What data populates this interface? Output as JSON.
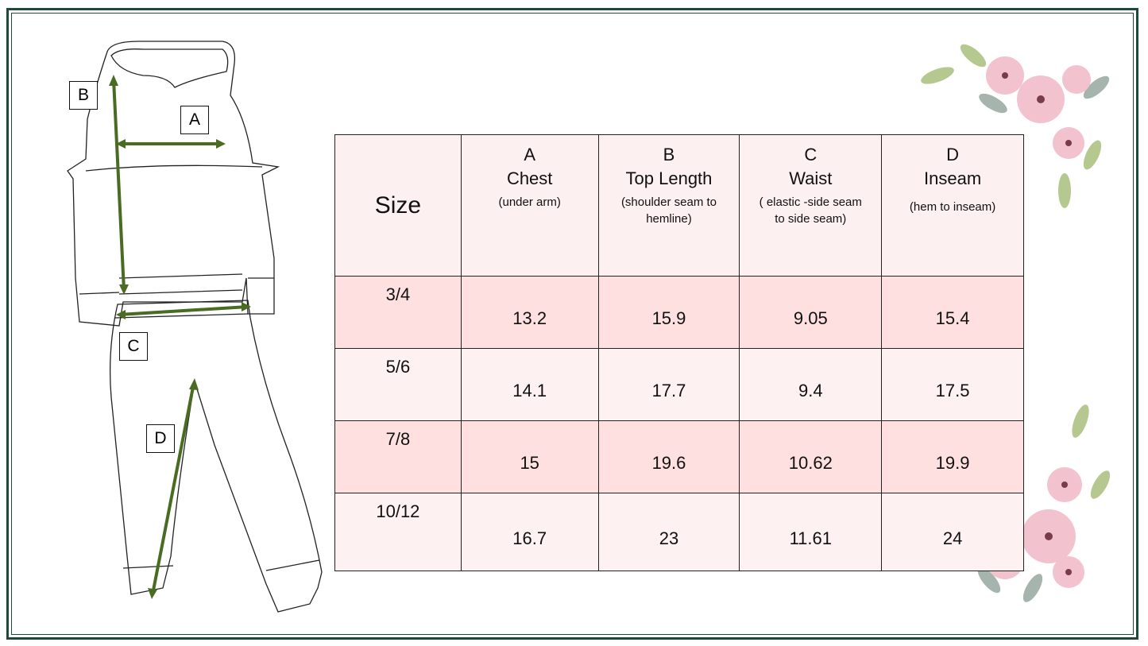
{
  "table": {
    "size_header": "Size",
    "columns": [
      {
        "letter": "A",
        "name": "Chest",
        "note": "(under arm)"
      },
      {
        "letter": "B",
        "name": "Top Length",
        "note": "(shoulder seam to hemline)"
      },
      {
        "letter": "C",
        "name": "Waist",
        "note": "( elastic -side seam to side seam)"
      },
      {
        "letter": "D",
        "name": "Inseam",
        "note": "(hem to inseam)"
      }
    ],
    "rows": [
      {
        "size": "3/4",
        "values": [
          "13.2",
          "15.9",
          "9.05",
          "15.4"
        ]
      },
      {
        "size": "5/6",
        "values": [
          "14.1",
          "17.7",
          "9.4",
          "17.5"
        ]
      },
      {
        "size": "7/8",
        "values": [
          "15",
          "19.6",
          "10.62",
          "19.9"
        ]
      },
      {
        "size": "10/12",
        "values": [
          "16.7",
          "23",
          "11.61",
          "24"
        ]
      }
    ]
  },
  "diagram_labels": {
    "a": "A",
    "b": "B",
    "c": "C",
    "d": "D"
  },
  "colors": {
    "frame": "#1f4a3a",
    "arrow": "#4a6b22",
    "row_pink": "#fde0df",
    "row_light": "#fdf1f1"
  }
}
